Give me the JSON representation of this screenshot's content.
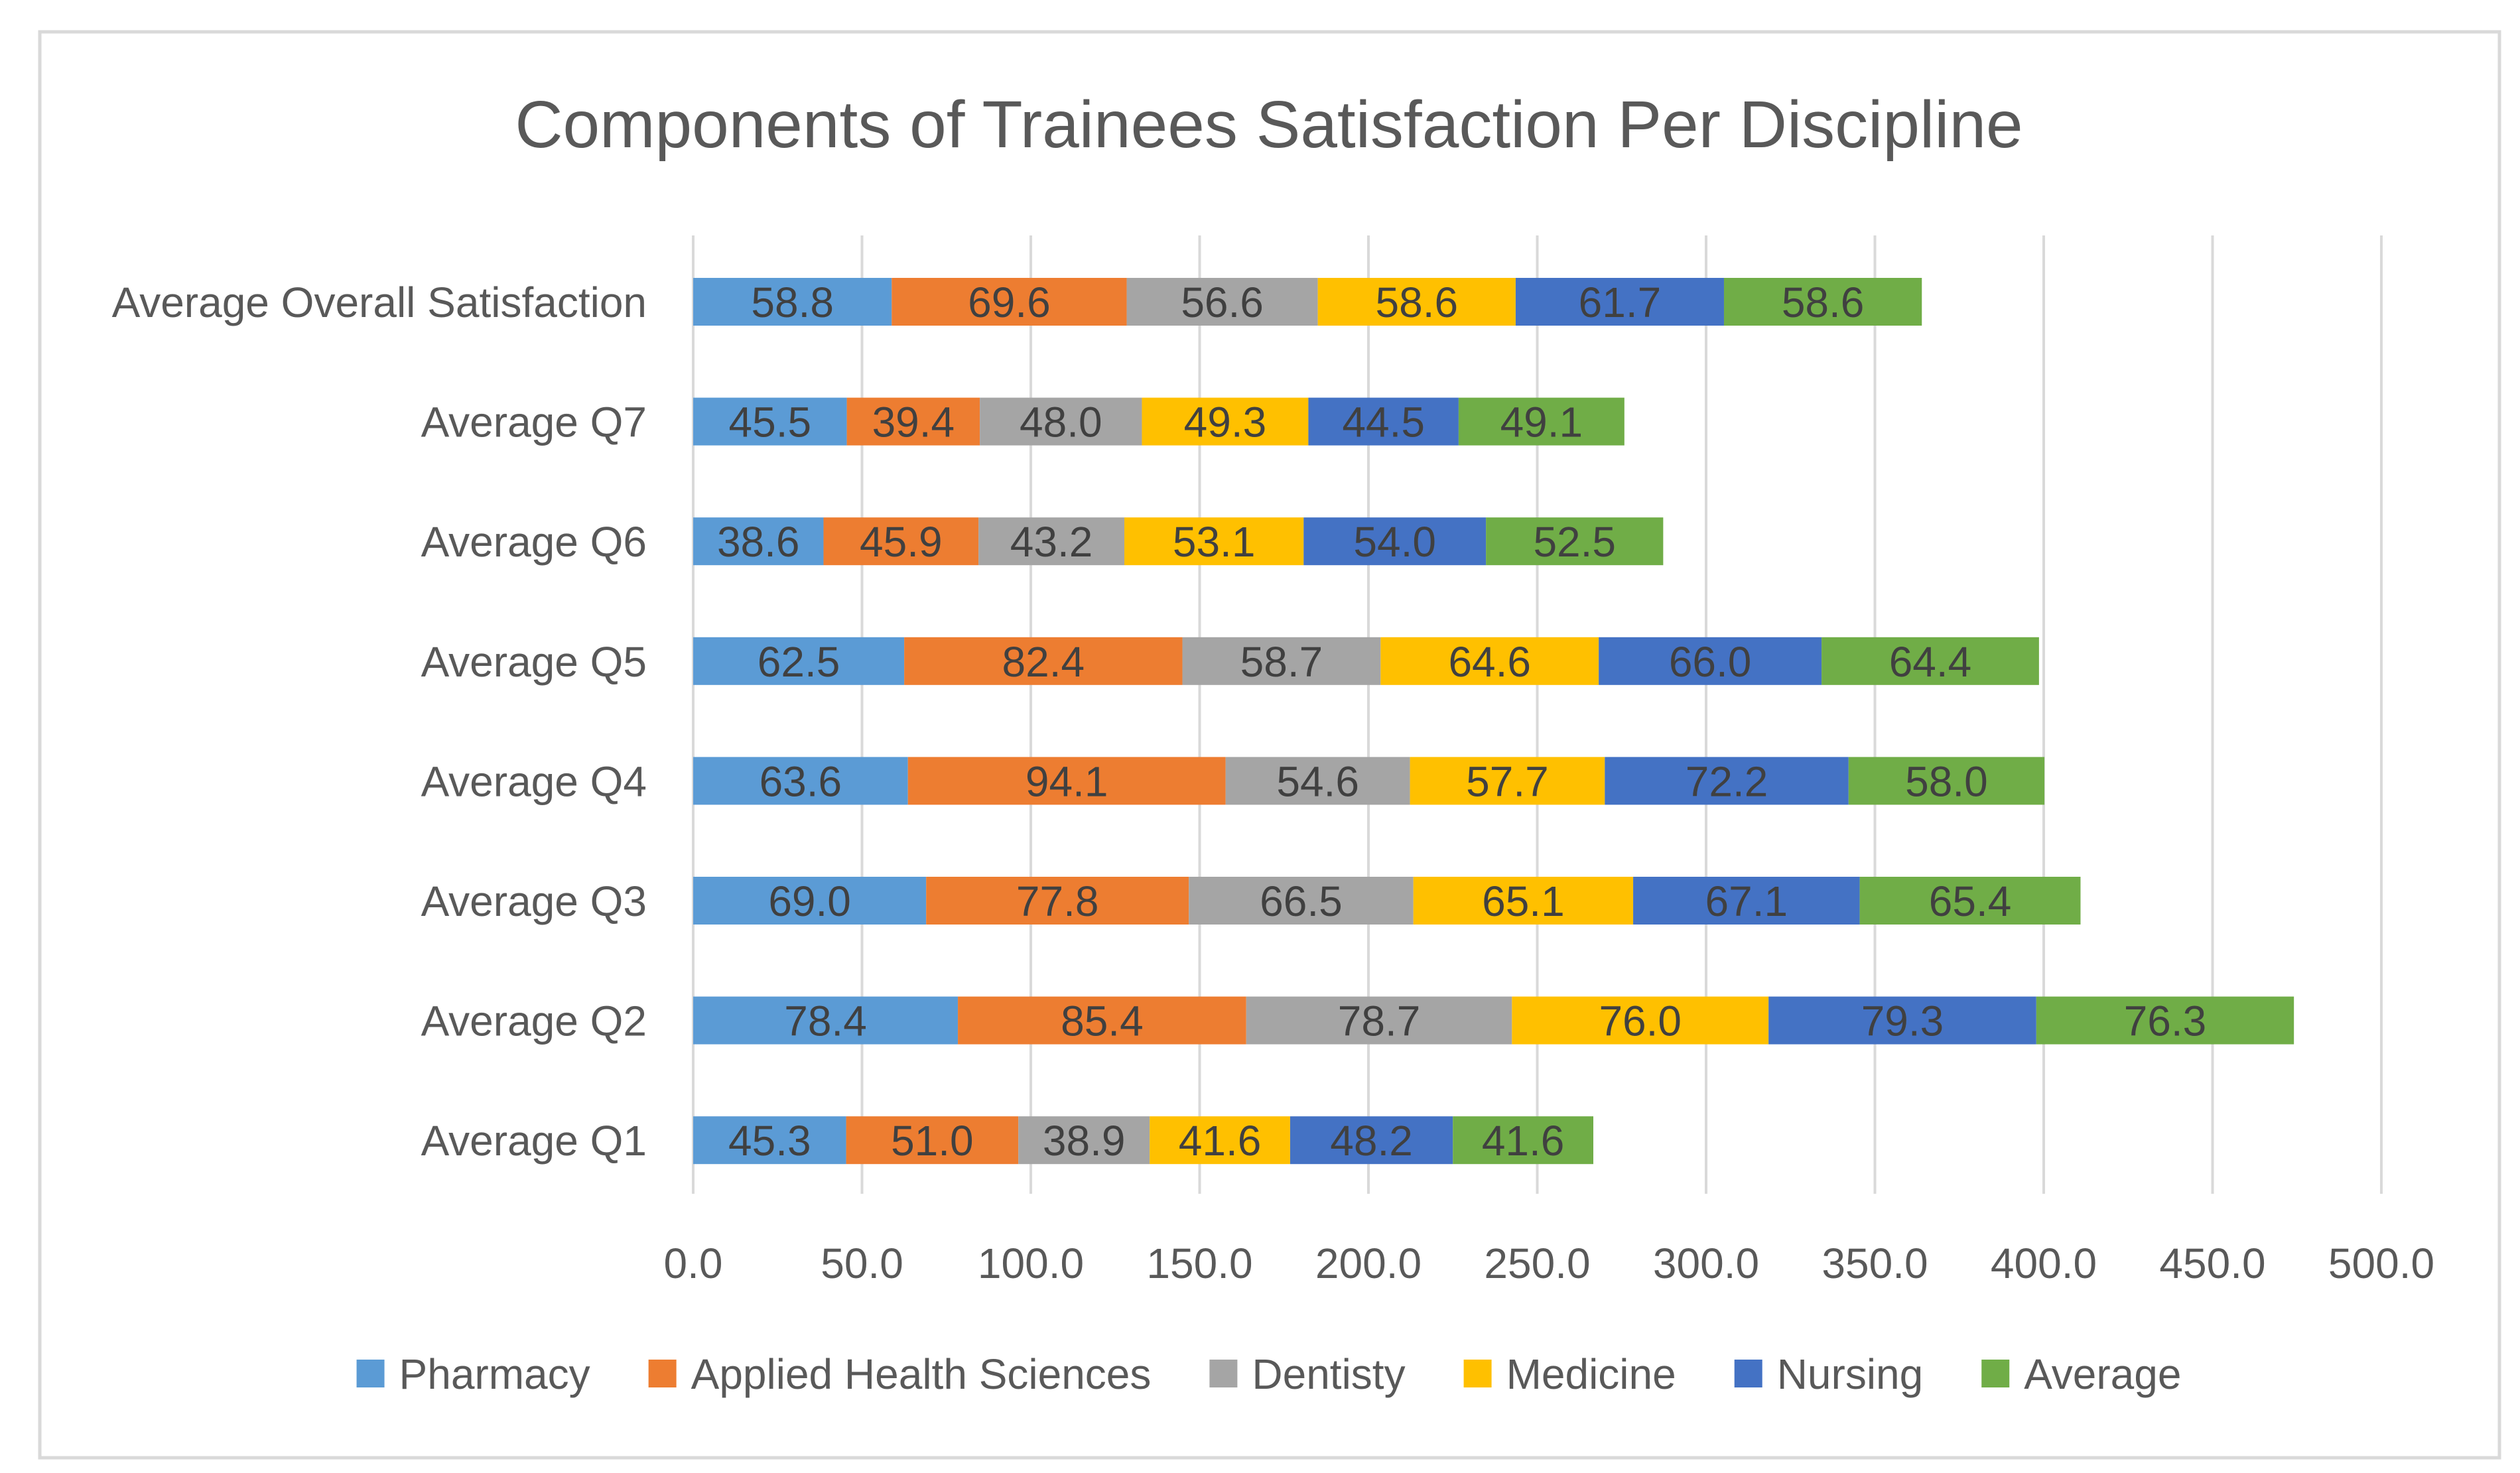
{
  "chart_data": {
    "type": "bar",
    "orientation": "horizontal",
    "stacked": true,
    "title": "Components of Trainees Satisfaction Per Discipline",
    "xlabel": "",
    "ylabel": "",
    "xlim": [
      0,
      500
    ],
    "x_ticks": [
      "0.0",
      "50.0",
      "100.0",
      "150.0",
      "200.0",
      "250.0",
      "300.0",
      "350.0",
      "400.0",
      "450.0",
      "500.0"
    ],
    "x_tick_values": [
      0,
      50,
      100,
      150,
      200,
      250,
      300,
      350,
      400,
      450,
      500
    ],
    "grid": true,
    "legend_position": "bottom",
    "categories": [
      "Average Overall Satisfaction",
      "Average Q7",
      "Average Q6",
      "Average Q5",
      "Average Q4",
      "Average Q3",
      "Average Q2",
      "Average Q1"
    ],
    "series": [
      {
        "name": "Pharmacy",
        "color": "#5B9BD5",
        "values": [
          58.8,
          45.5,
          38.6,
          62.5,
          63.6,
          69.0,
          78.4,
          45.3
        ],
        "labels": [
          "58.8",
          "45.5",
          "38.6",
          "62.5",
          "63.6",
          "69.0",
          "78.4",
          "45.3"
        ]
      },
      {
        "name": "Applied Health Sciences",
        "color": "#ED7D31",
        "values": [
          69.6,
          39.4,
          45.9,
          82.4,
          94.1,
          77.8,
          85.4,
          51.0
        ],
        "labels": [
          "69.6",
          "39.4",
          "45.9",
          "82.4",
          "94.1",
          "77.8",
          "85.4",
          "51.0"
        ]
      },
      {
        "name": "Dentisty",
        "color": "#A5A5A5",
        "values": [
          56.6,
          48.0,
          43.2,
          58.7,
          54.6,
          66.5,
          78.7,
          38.9
        ],
        "labels": [
          "56.6",
          "48.0",
          "43.2",
          "58.7",
          "54.6",
          "66.5",
          "78.7",
          "38.9"
        ]
      },
      {
        "name": "Medicine",
        "color": "#FFC000",
        "values": [
          58.6,
          49.3,
          53.1,
          64.6,
          57.7,
          65.1,
          76.0,
          41.6
        ],
        "labels": [
          "58.6",
          "49.3",
          "53.1",
          "64.6",
          "57.7",
          "65.1",
          "76.0",
          "41.6"
        ]
      },
      {
        "name": "Nursing",
        "color": "#4472C4",
        "values": [
          61.7,
          44.5,
          54.0,
          66.0,
          72.2,
          67.1,
          79.3,
          48.2
        ],
        "labels": [
          "61.7",
          "44.5",
          "54.0",
          "66.0",
          "72.2",
          "67.1",
          "79.3",
          "48.2"
        ]
      },
      {
        "name": "Average",
        "color": "#70AD47",
        "values": [
          58.6,
          49.1,
          52.5,
          64.4,
          58.0,
          65.4,
          76.3,
          41.6
        ],
        "labels": [
          "58.6",
          "49.1",
          "52.5",
          "64.4",
          "58.0",
          "65.4",
          "76.3",
          "41.6"
        ]
      }
    ],
    "colors": {
      "title": "#595959",
      "axis_text": "#595959",
      "data_label": "#404040",
      "gridline": "#D9D9D9",
      "border": "#D9D9D9",
      "background": "#FFFFFF"
    }
  }
}
